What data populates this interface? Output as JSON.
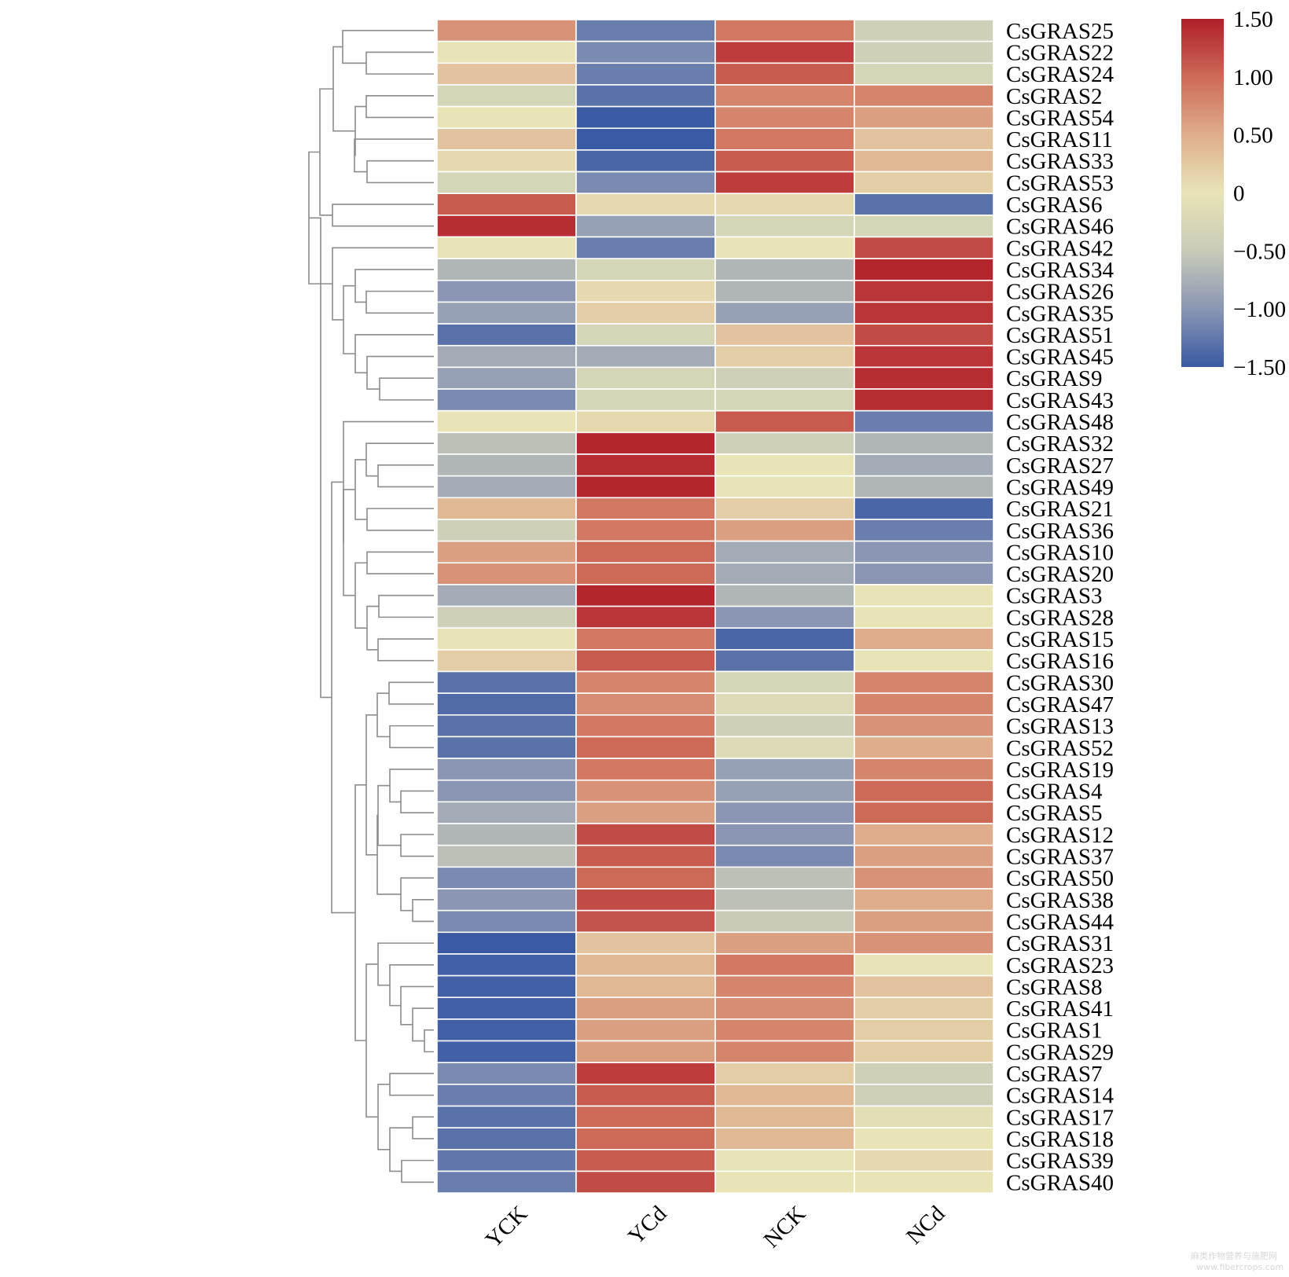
{
  "chart_data": {
    "type": "heatmap",
    "columns": [
      "YCK",
      "YCd",
      "NCK",
      "NCd"
    ],
    "rows": [
      "CsGRAS25",
      "CsGRAS22",
      "CsGRAS24",
      "CsGRAS2",
      "CsGRAS54",
      "CsGRAS11",
      "CsGRAS33",
      "CsGRAS53",
      "CsGRAS6",
      "CsGRAS46",
      "CsGRAS42",
      "CsGRAS34",
      "CsGRAS26",
      "CsGRAS35",
      "CsGRAS51",
      "CsGRAS45",
      "CsGRAS9",
      "CsGRAS43",
      "CsGRAS48",
      "CsGRAS32",
      "CsGRAS27",
      "CsGRAS49",
      "CsGRAS21",
      "CsGRAS36",
      "CsGRAS10",
      "CsGRAS20",
      "CsGRAS3",
      "CsGRAS28",
      "CsGRAS15",
      "CsGRAS16",
      "CsGRAS30",
      "CsGRAS47",
      "CsGRAS13",
      "CsGRAS52",
      "CsGRAS19",
      "CsGRAS4",
      "CsGRAS5",
      "CsGRAS12",
      "CsGRAS37",
      "CsGRAS50",
      "CsGRAS38",
      "CsGRAS44",
      "CsGRAS31",
      "CsGRAS23",
      "CsGRAS8",
      "CsGRAS41",
      "CsGRAS1",
      "CsGRAS29",
      "CsGRAS7",
      "CsGRAS14",
      "CsGRAS17",
      "CsGRAS18",
      "CsGRAS39",
      "CsGRAS40"
    ],
    "values": [
      [
        0.7,
        -1.2,
        0.9,
        -0.4
      ],
      [
        0.0,
        -1.1,
        1.3,
        -0.4
      ],
      [
        0.3,
        -1.2,
        1.1,
        -0.3
      ],
      [
        -0.3,
        -1.3,
        0.8,
        0.8
      ],
      [
        0.0,
        -1.5,
        0.8,
        0.6
      ],
      [
        0.3,
        -1.5,
        0.9,
        0.3
      ],
      [
        0.1,
        -1.4,
        1.1,
        0.4
      ],
      [
        -0.3,
        -1.1,
        1.3,
        0.2
      ],
      [
        1.1,
        0.1,
        0.1,
        -1.3
      ],
      [
        1.4,
        -0.9,
        -0.3,
        -0.3
      ],
      [
        0.0,
        -1.2,
        0.0,
        1.2
      ],
      [
        -0.7,
        -0.3,
        -0.7,
        1.45
      ],
      [
        -1.0,
        0.1,
        -0.7,
        1.35
      ],
      [
        -0.9,
        0.2,
        -0.9,
        1.35
      ],
      [
        -1.3,
        -0.3,
        0.3,
        1.2
      ],
      [
        -0.8,
        -0.8,
        0.2,
        1.35
      ],
      [
        -0.9,
        -0.3,
        -0.4,
        1.4
      ],
      [
        -1.1,
        -0.3,
        -0.3,
        1.4
      ],
      [
        0.0,
        0.1,
        1.1,
        -1.2
      ],
      [
        -0.6,
        1.45,
        -0.4,
        -0.7
      ],
      [
        -0.7,
        1.4,
        0.0,
        -0.8
      ],
      [
        -0.8,
        1.45,
        0.0,
        -0.7
      ],
      [
        0.4,
        0.9,
        0.2,
        -1.4
      ],
      [
        -0.4,
        0.9,
        0.6,
        -1.2
      ],
      [
        0.6,
        1.0,
        -0.8,
        -1.0
      ],
      [
        0.7,
        1.0,
        -0.8,
        -1.0
      ],
      [
        -0.8,
        1.45,
        -0.7,
        0.0
      ],
      [
        -0.4,
        1.35,
        -1.0,
        0.0
      ],
      [
        0.0,
        0.9,
        -1.4,
        0.5
      ],
      [
        0.2,
        1.1,
        -1.3,
        0.0
      ],
      [
        -1.3,
        0.8,
        -0.3,
        0.8
      ],
      [
        -1.35,
        0.75,
        -0.2,
        0.8
      ],
      [
        -1.3,
        0.9,
        -0.4,
        0.7
      ],
      [
        -1.3,
        1.0,
        -0.2,
        0.5
      ],
      [
        -1.0,
        0.9,
        -0.9,
        0.8
      ],
      [
        -1.0,
        0.7,
        -0.9,
        1.0
      ],
      [
        -0.8,
        0.6,
        -1.0,
        1.0
      ],
      [
        -0.7,
        1.2,
        -1.0,
        0.5
      ],
      [
        -0.6,
        1.1,
        -1.1,
        0.6
      ],
      [
        -1.1,
        1.0,
        -0.6,
        0.7
      ],
      [
        -1.0,
        1.2,
        -0.6,
        0.5
      ],
      [
        -1.1,
        1.15,
        -0.5,
        0.6
      ],
      [
        -1.5,
        0.3,
        0.6,
        0.7
      ],
      [
        -1.45,
        0.4,
        0.9,
        0.0
      ],
      [
        -1.45,
        0.4,
        0.8,
        0.3
      ],
      [
        -1.45,
        0.6,
        0.75,
        0.2
      ],
      [
        -1.45,
        0.6,
        0.8,
        0.2
      ],
      [
        -1.45,
        0.6,
        0.8,
        0.2
      ],
      [
        -1.1,
        1.3,
        0.2,
        -0.4
      ],
      [
        -1.2,
        1.1,
        0.4,
        -0.4
      ],
      [
        -1.3,
        1.0,
        0.4,
        -0.1
      ],
      [
        -1.3,
        1.0,
        0.4,
        0.0
      ],
      [
        -1.25,
        1.1,
        0.0,
        0.1
      ],
      [
        -1.2,
        1.2,
        0.0,
        0.0
      ]
    ],
    "colorbar": {
      "min": -1.5,
      "max": 1.5,
      "ticks": [
        {
          "value": 1.5,
          "label": "1.50"
        },
        {
          "value": 1.0,
          "label": "1.00"
        },
        {
          "value": 0.5,
          "label": "0.50"
        },
        {
          "value": 0.0,
          "label": "0"
        },
        {
          "value": -0.5,
          "label": "−0.50"
        },
        {
          "value": -1.0,
          "label": "−1.00"
        },
        {
          "value": -1.5,
          "label": "−1.50"
        }
      ],
      "colors": [
        "#3a5aa4",
        "#8a96b4",
        "#c9cbb8",
        "#e8e4b6",
        "#dfad8c",
        "#cd6a57",
        "#b01f2a"
      ]
    },
    "title": "",
    "xlabel": "",
    "ylabel": ""
  },
  "watermark": {
    "line1": "麻类作物营养与施肥网",
    "line2": "www.fibercrops.com"
  }
}
